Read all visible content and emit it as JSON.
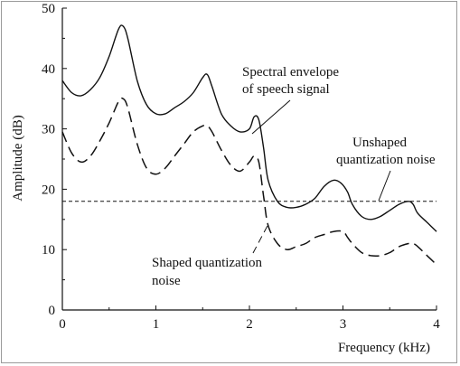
{
  "chart_data": {
    "type": "line",
    "xlabel": "Frequency (kHz)",
    "ylabel": "Amplitude (dB)",
    "xlim": [
      0,
      4
    ],
    "ylim": [
      0,
      50
    ],
    "x_ticks": [
      "0",
      "1",
      "2",
      "3",
      "4"
    ],
    "y_ticks": [
      "0",
      "10",
      "20",
      "30",
      "40",
      "50"
    ],
    "grid": false,
    "series": [
      {
        "name": "Spectral envelope of speech signal",
        "style": "solid",
        "x": [
          0,
          0.1,
          0.2,
          0.3,
          0.4,
          0.5,
          0.6,
          0.65,
          0.7,
          0.8,
          0.9,
          1.0,
          1.1,
          1.2,
          1.3,
          1.4,
          1.5,
          1.55,
          1.6,
          1.7,
          1.8,
          1.9,
          2.0,
          2.05,
          2.1,
          2.15,
          2.2,
          2.3,
          2.4,
          2.5,
          2.6,
          2.7,
          2.8,
          2.9,
          2.98,
          3.05,
          3.1,
          3.2,
          3.3,
          3.4,
          3.5,
          3.6,
          3.7,
          3.75,
          3.8,
          3.9,
          4.0
        ],
        "values": [
          38.0,
          36.0,
          35.5,
          36.5,
          38.5,
          42.0,
          46.5,
          47.0,
          45.0,
          38.0,
          34.0,
          32.5,
          32.5,
          33.5,
          34.5,
          36.0,
          38.5,
          39.0,
          37.0,
          32.5,
          30.5,
          29.5,
          30.0,
          32.0,
          31.5,
          27.0,
          21.5,
          18.0,
          17.0,
          17.0,
          17.5,
          18.5,
          20.5,
          21.5,
          21.0,
          19.5,
          17.5,
          15.5,
          15.0,
          15.5,
          16.5,
          17.5,
          18.0,
          17.5,
          16.0,
          14.5,
          13.0
        ]
      },
      {
        "name": "Shaped quantization noise",
        "style": "dashed",
        "x": [
          0,
          0.1,
          0.2,
          0.3,
          0.4,
          0.5,
          0.6,
          0.65,
          0.7,
          0.8,
          0.9,
          1.0,
          1.1,
          1.2,
          1.3,
          1.4,
          1.5,
          1.55,
          1.6,
          1.7,
          1.8,
          1.9,
          2.0,
          2.05,
          2.1,
          2.15,
          2.2,
          2.3,
          2.4,
          2.5,
          2.6,
          2.7,
          2.8,
          2.9,
          3.0,
          3.05,
          3.1,
          3.2,
          3.3,
          3.4,
          3.5,
          3.6,
          3.7,
          3.75,
          3.8,
          3.9,
          4.0
        ],
        "values": [
          29.5,
          26.0,
          24.5,
          25.5,
          28.0,
          31.0,
          34.5,
          35.0,
          33.5,
          27.5,
          23.5,
          22.5,
          23.5,
          25.5,
          27.5,
          29.5,
          30.5,
          30.5,
          29.5,
          26.5,
          24.0,
          23.0,
          24.5,
          25.5,
          24.5,
          19.0,
          14.0,
          11.0,
          10.0,
          10.5,
          11.0,
          12.0,
          12.5,
          13.0,
          13.0,
          12.0,
          11.0,
          9.5,
          9.0,
          9.0,
          9.5,
          10.5,
          11.0,
          11.0,
          10.5,
          9.0,
          7.5
        ]
      },
      {
        "name": "Unshaped quantization noise",
        "style": "dotted",
        "x": [
          0,
          4
        ],
        "values": [
          18,
          18
        ]
      }
    ],
    "annotations": [
      {
        "line1": "Spectral envelope",
        "line2": "of speech signal"
      },
      {
        "line1": "Unshaped",
        "line2": "quantization noise"
      },
      {
        "line1": "Shaped quantization",
        "line2": "noise"
      }
    ]
  }
}
